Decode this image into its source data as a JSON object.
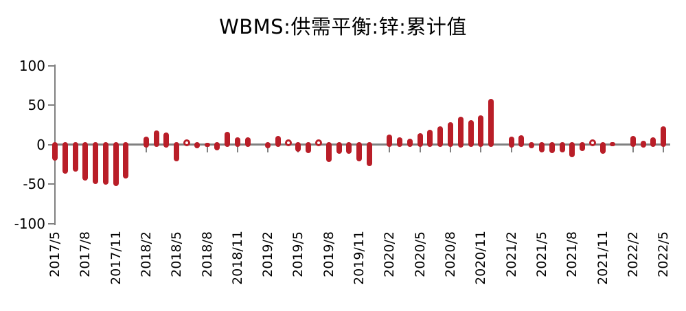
{
  "title": "WBMS:供需平衡:锌:累计值",
  "colors": {
    "bar": "#B91E28",
    "axis": "#808080",
    "text": "#000000",
    "background": "#FFFFFF"
  },
  "chart_data": {
    "type": "bar",
    "title": "WBMS:供需平衡:锌:累计值",
    "xlabel": "",
    "ylabel": "",
    "ylim": [
      -100,
      100
    ],
    "yticks": [
      100,
      50,
      0,
      -50,
      -100
    ],
    "grid": false,
    "legend": null,
    "bar_color": "#B91E28",
    "xtick_label_every": 3,
    "x": [
      "2017/5",
      "2017/6",
      "2017/7",
      "2017/8",
      "2017/9",
      "2017/10",
      "2017/11",
      "2017/12",
      "2018/1",
      "2018/2",
      "2018/3",
      "2018/4",
      "2018/5",
      "2018/6",
      "2018/7",
      "2018/8",
      "2018/9",
      "2018/10",
      "2018/11",
      "2018/12",
      "2019/1",
      "2019/2",
      "2019/3",
      "2019/4",
      "2019/5",
      "2019/6",
      "2019/7",
      "2019/8",
      "2019/9",
      "2019/10",
      "2019/11",
      "2019/12",
      "2020/1",
      "2020/2",
      "2020/3",
      "2020/4",
      "2020/5",
      "2020/6",
      "2020/7",
      "2020/8",
      "2020/9",
      "2020/10",
      "2020/11",
      "2020/12",
      "2021/1",
      "2021/2",
      "2021/3",
      "2021/4",
      "2021/5",
      "2021/6",
      "2021/7",
      "2021/8",
      "2021/9",
      "2021/10",
      "2021/11",
      "2021/12",
      "2022/1",
      "2022/2",
      "2022/3",
      "2022/4",
      "2022/5"
    ],
    "values": [
      -20,
      -37,
      -34,
      -46,
      -50,
      -51,
      -53,
      -43,
      null,
      10,
      18,
      15,
      -21,
      0,
      -5,
      2,
      -7,
      16,
      9,
      9,
      null,
      -5,
      11,
      0,
      -9,
      -11,
      0,
      -22,
      -12,
      -12,
      -21,
      -27,
      null,
      13,
      9,
      7,
      14,
      19,
      23,
      28,
      35,
      31,
      37,
      58,
      null,
      10,
      12,
      -5,
      -10,
      -11,
      -10,
      -16,
      -8,
      0,
      -12,
      -2,
      null,
      11,
      5,
      9,
      23
    ],
    "zero_marker_style": "hollow-circle",
    "xtick_labels_shown": [
      "2017/5",
      "2017/8",
      "2017/11",
      "2018/2",
      "2018/5",
      "2018/8",
      "2018/11",
      "2019/2",
      "2019/5",
      "2019/8",
      "2019/11",
      "2020/2",
      "2020/5",
      "2020/8",
      "2020/11",
      "2021/2",
      "2021/5",
      "2021/8",
      "2021/11",
      "2022/2",
      "2022/5"
    ]
  }
}
